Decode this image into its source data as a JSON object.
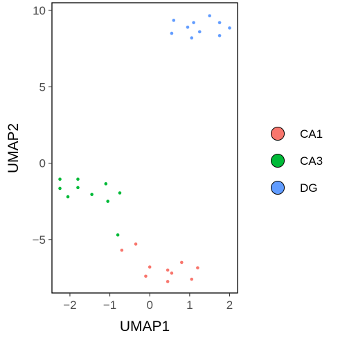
{
  "chart_data": {
    "type": "scatter",
    "xlabel": "UMAP1",
    "ylabel": "UMAP2",
    "xlim": [
      -2.45,
      2.2
    ],
    "ylim": [
      -8.5,
      10.5
    ],
    "xticks": [
      -2,
      -1,
      0,
      1,
      2
    ],
    "yticks": [
      -5,
      0,
      5,
      10
    ],
    "xtick_labels": [
      "−2",
      "−1",
      "0",
      "1",
      "2"
    ],
    "ytick_labels": [
      "−5",
      "0",
      "5",
      "10"
    ],
    "grid": false,
    "legend_position": "right",
    "series": [
      {
        "name": "CA1",
        "color": "#F8766D",
        "points": [
          [
            -0.7,
            -5.7
          ],
          [
            -0.35,
            -5.3
          ],
          [
            0.0,
            -6.8
          ],
          [
            -0.1,
            -7.4
          ],
          [
            0.45,
            -7.0
          ],
          [
            0.55,
            -7.2
          ],
          [
            0.8,
            -6.5
          ],
          [
            1.2,
            -6.85
          ],
          [
            0.45,
            -7.75
          ],
          [
            1.05,
            -7.6
          ]
        ]
      },
      {
        "name": "CA3",
        "color": "#00BA38",
        "points": [
          [
            -2.25,
            -1.05
          ],
          [
            -2.25,
            -1.65
          ],
          [
            -2.05,
            -2.2
          ],
          [
            -1.8,
            -1.05
          ],
          [
            -1.8,
            -1.6
          ],
          [
            -1.45,
            -2.05
          ],
          [
            -1.1,
            -1.35
          ],
          [
            -1.05,
            -2.5
          ],
          [
            -0.75,
            -1.95
          ],
          [
            -0.8,
            -4.7
          ]
        ]
      },
      {
        "name": "DG",
        "color": "#619CFF",
        "points": [
          [
            0.6,
            9.35
          ],
          [
            0.55,
            8.5
          ],
          [
            0.95,
            8.9
          ],
          [
            1.05,
            8.2
          ],
          [
            1.1,
            9.2
          ],
          [
            1.25,
            8.6
          ],
          [
            1.5,
            9.65
          ],
          [
            1.75,
            9.2
          ],
          [
            1.75,
            8.35
          ],
          [
            2.0,
            8.85
          ]
        ]
      }
    ]
  }
}
